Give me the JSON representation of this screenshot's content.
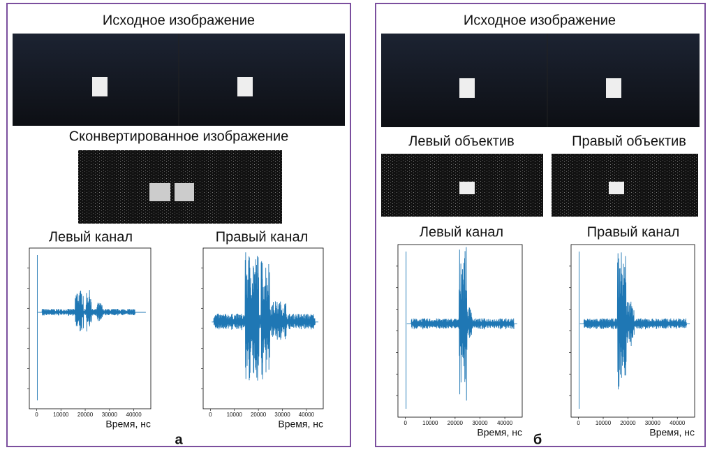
{
  "panels": [
    {
      "title": "Исходное изображение",
      "subtitle": "Сконвертированное  изображение",
      "plots": [
        {
          "title": "Левый канал",
          "xlabel": "Время, нс",
          "xlim": [
            -3000,
            47000
          ],
          "xticks": [
            0,
            10000,
            20000,
            30000,
            40000
          ]
        },
        {
          "title": "Правый канал",
          "xlabel": "Время, нс",
          "xlim": [
            -3000,
            47000
          ],
          "xticks": [
            0,
            10000,
            20000,
            30000,
            40000
          ]
        }
      ],
      "label": "а"
    },
    {
      "title": "Исходное изображение",
      "lens_labels": [
        "Левый объектив",
        "Правый объектив"
      ],
      "plots": [
        {
          "title": "Левый канал",
          "xlabel": "Время, нс",
          "xlim": [
            -3000,
            47000
          ],
          "xticks": [
            0,
            10000,
            20000,
            30000,
            40000
          ]
        },
        {
          "title": "Правый канал",
          "xlabel": "Время, нс",
          "xlim": [
            -3000,
            47000
          ],
          "xticks": [
            0,
            10000,
            20000,
            30000,
            40000
          ]
        }
      ],
      "label": "б"
    }
  ]
}
